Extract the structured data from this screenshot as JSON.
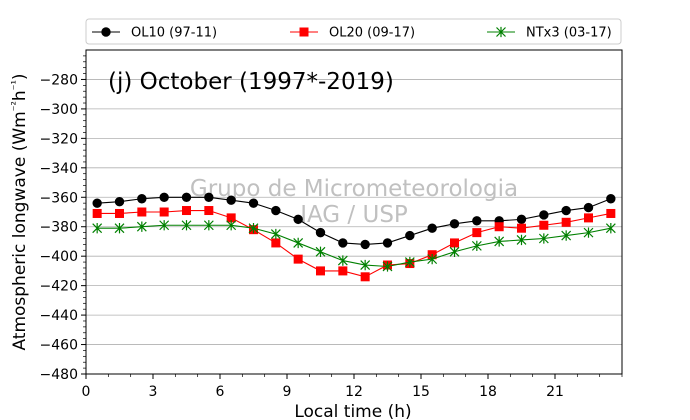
{
  "chart_data": {
    "type": "line",
    "title": "(j) October (1997*-2019)",
    "watermark": [
      "Grupo de Micrometeorologia",
      "IAG / USP"
    ],
    "xlabel": "Local time (h)",
    "ylabel": "Atmospheric longwave (Wm⁻²h⁻¹)",
    "xlim": [
      0,
      24
    ],
    "ylim": [
      -480,
      -260
    ],
    "xticks": [
      0,
      3,
      6,
      9,
      12,
      15,
      18,
      21
    ],
    "yticks": [
      -480,
      -460,
      -440,
      -420,
      -400,
      -380,
      -360,
      -340,
      -320,
      -300,
      -280
    ],
    "grid": "horizontal",
    "legend_position": "top",
    "x": [
      0.5,
      1.5,
      2.5,
      3.5,
      4.5,
      5.5,
      6.5,
      7.5,
      8.5,
      9.5,
      10.5,
      11.5,
      12.5,
      13.5,
      14.5,
      15.5,
      16.5,
      17.5,
      18.5,
      19.5,
      20.5,
      21.5,
      22.5,
      23.5
    ],
    "series": [
      {
        "name": "OL10 (97-11)",
        "color": "#000000",
        "marker": "circle",
        "values": [
          -364,
          -363,
          -361,
          -360,
          -360,
          -360,
          -362,
          -364,
          -369,
          -375,
          -384,
          -391,
          -392,
          -391,
          -386,
          -381,
          -378,
          -376,
          -376,
          -375,
          -372,
          -369,
          -367,
          -361
        ]
      },
      {
        "name": "OL20 (09-17)",
        "color": "#ff0000",
        "marker": "square",
        "values": [
          -371,
          -371,
          -370,
          -370,
          -369,
          -369,
          -374,
          -382,
          -391,
          -402,
          -410,
          -410,
          -414,
          -406,
          -405,
          -399,
          -391,
          -384,
          -380,
          -381,
          -379,
          -377,
          -374,
          -371
        ]
      },
      {
        "name": "NTx3 (03-17)",
        "color": "#008000",
        "marker": "x-star",
        "values": [
          -381,
          -381,
          -380,
          -379,
          -379,
          -379,
          -379,
          -381,
          -385,
          -391,
          -397,
          -403,
          -406,
          -407,
          -404,
          -402,
          -397,
          -393,
          -390,
          -389,
          -388,
          -386,
          -384,
          -381
        ]
      }
    ]
  }
}
